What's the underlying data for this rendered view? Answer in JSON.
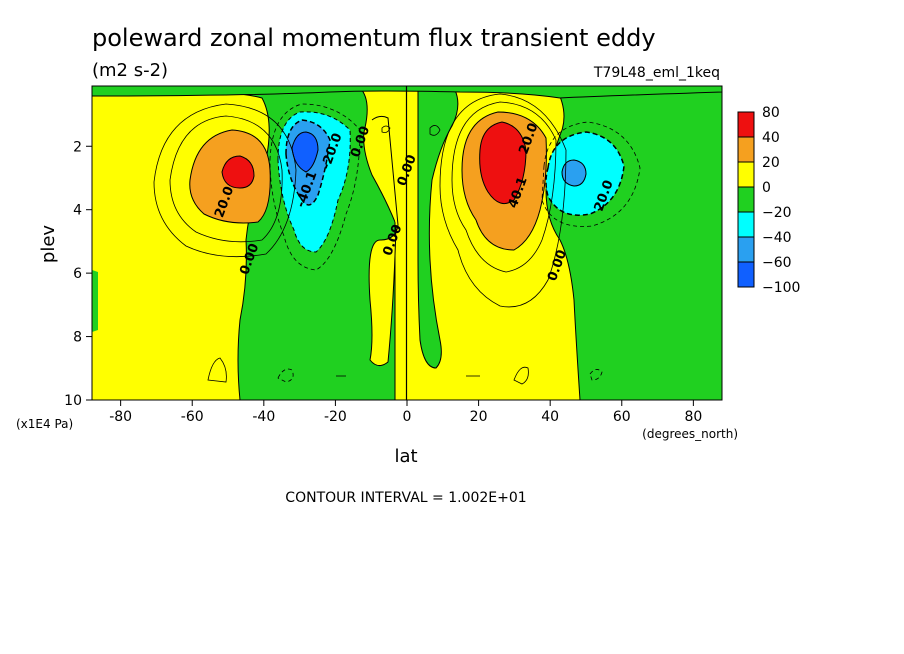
{
  "chart_data": {
    "type": "contour",
    "title": "poleward zonal momentum flux transient eddy",
    "units": "(m2 s-2)",
    "run_label": "T79L48_eml_1keq",
    "xlabel": "lat",
    "xunits": "(degrees_north)",
    "ylabel": "plev",
    "yunits": "(x1E4 Pa)",
    "xlim": [
      -88,
      88
    ],
    "ylim": [
      10,
      0.1
    ],
    "xticks": [
      "-80",
      "-60",
      "-40",
      "-20",
      "0",
      "20",
      "40",
      "60",
      "80"
    ],
    "xtick_values": [
      -80,
      -60,
      -40,
      -20,
      0,
      20,
      40,
      60,
      80
    ],
    "yticks": [
      "2",
      "4",
      "6",
      "8",
      "10"
    ],
    "ytick_values": [
      2,
      4,
      6,
      8,
      10
    ],
    "contour_interval": "CONTOUR INTERVAL = 1.002E+01",
    "colorbar": {
      "levels": [
        "80",
        "40",
        "20",
        "0",
        "−20",
        "−40",
        "−60",
        "−100"
      ],
      "colors": [
        "#ee1010",
        "#f5a01f",
        "#ffff00",
        "#20d020",
        "#00ffff",
        "#2aa0f0",
        "#1060ff"
      ]
    },
    "contour_labels": [
      {
        "text": "20.0",
        "lat": -50,
        "p": 3.8
      },
      {
        "text": "0.00",
        "lat": -43,
        "p": 5.6
      },
      {
        "text": "-40.1",
        "lat": -27,
        "p": 3.4
      },
      {
        "text": "-20.0",
        "lat": -20,
        "p": 2.2
      },
      {
        "text": "0.00",
        "lat": -12,
        "p": 1.9
      },
      {
        "text": "0.00",
        "lat": -3,
        "p": 5.0
      },
      {
        "text": "0.00",
        "lat": 1,
        "p": 2.8
      },
      {
        "text": "40.1",
        "lat": 32,
        "p": 3.5
      },
      {
        "text": "20.0",
        "lat": 35,
        "p": 1.8
      },
      {
        "text": "0.00",
        "lat": 43,
        "p": 5.8
      },
      {
        "text": "20.0",
        "lat": 56,
        "p": 3.6
      }
    ],
    "extrema": [
      {
        "lat": -48,
        "p": 2.8,
        "value_class": "40 to 80"
      },
      {
        "lat": -29,
        "p": 2.4,
        "value_class": "-60 to -100"
      },
      {
        "lat": 28,
        "p": 2.2,
        "value_class": "40 to 80"
      },
      {
        "lat": 48,
        "p": 2.9,
        "value_class": "-40 to -60"
      }
    ]
  }
}
